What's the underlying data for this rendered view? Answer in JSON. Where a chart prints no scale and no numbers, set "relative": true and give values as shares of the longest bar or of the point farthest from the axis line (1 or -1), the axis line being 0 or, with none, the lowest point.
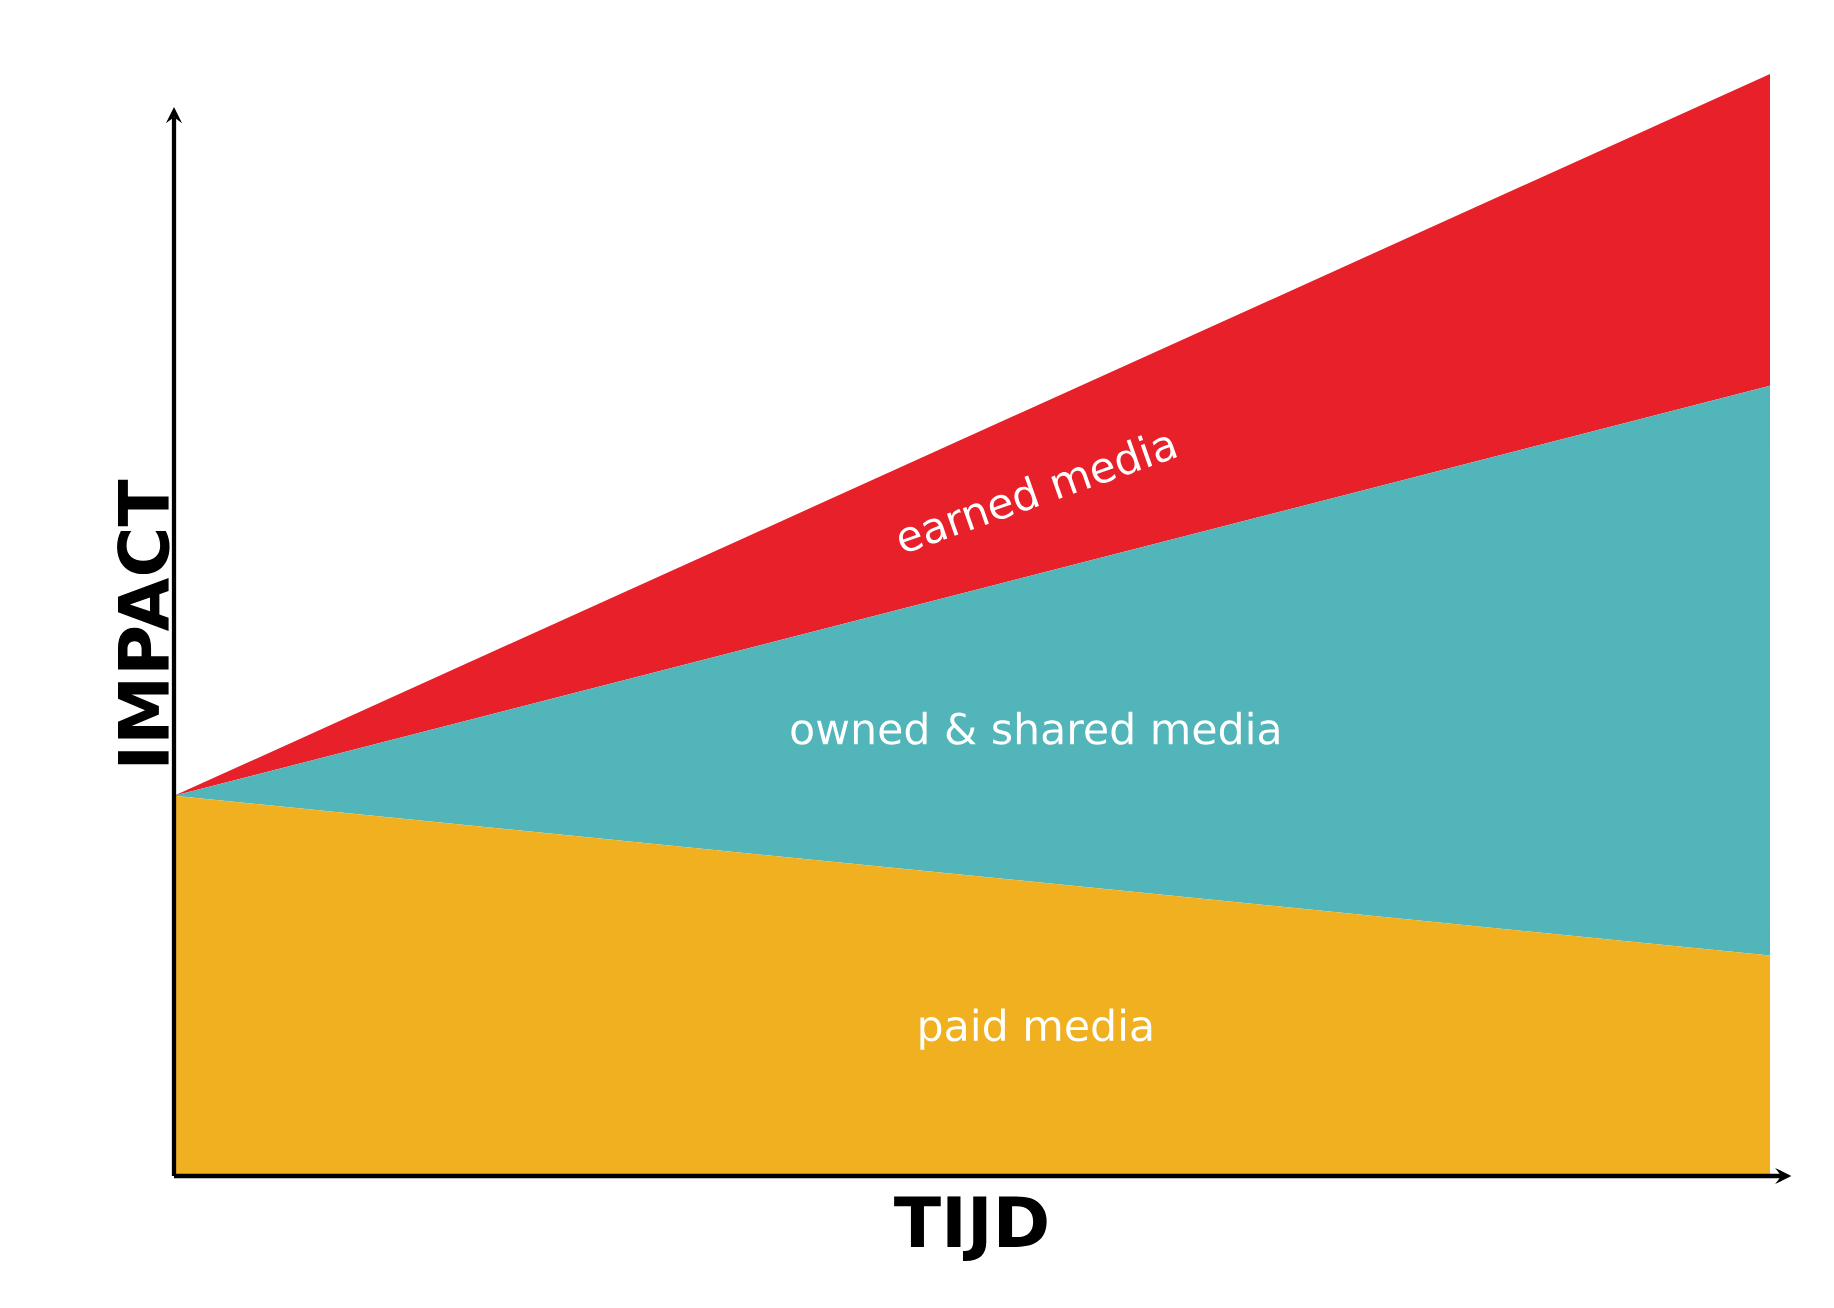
{
  "chart_data": {
    "type": "area",
    "relative": true,
    "stacked": true,
    "xlabel": "TIJD",
    "ylabel": "IMPACT",
    "categories": [
      null,
      null
    ],
    "series": [
      {
        "name": "paid media",
        "color": "#f0b020",
        "values": [
          0.345,
          0.2
        ]
      },
      {
        "name": "owned & shared media",
        "color": "#52b5b9",
        "values": [
          0,
          0.517
        ]
      },
      {
        "name": "earned media",
        "color": "#e8202a",
        "values": [
          0,
          0.283
        ]
      }
    ]
  }
}
